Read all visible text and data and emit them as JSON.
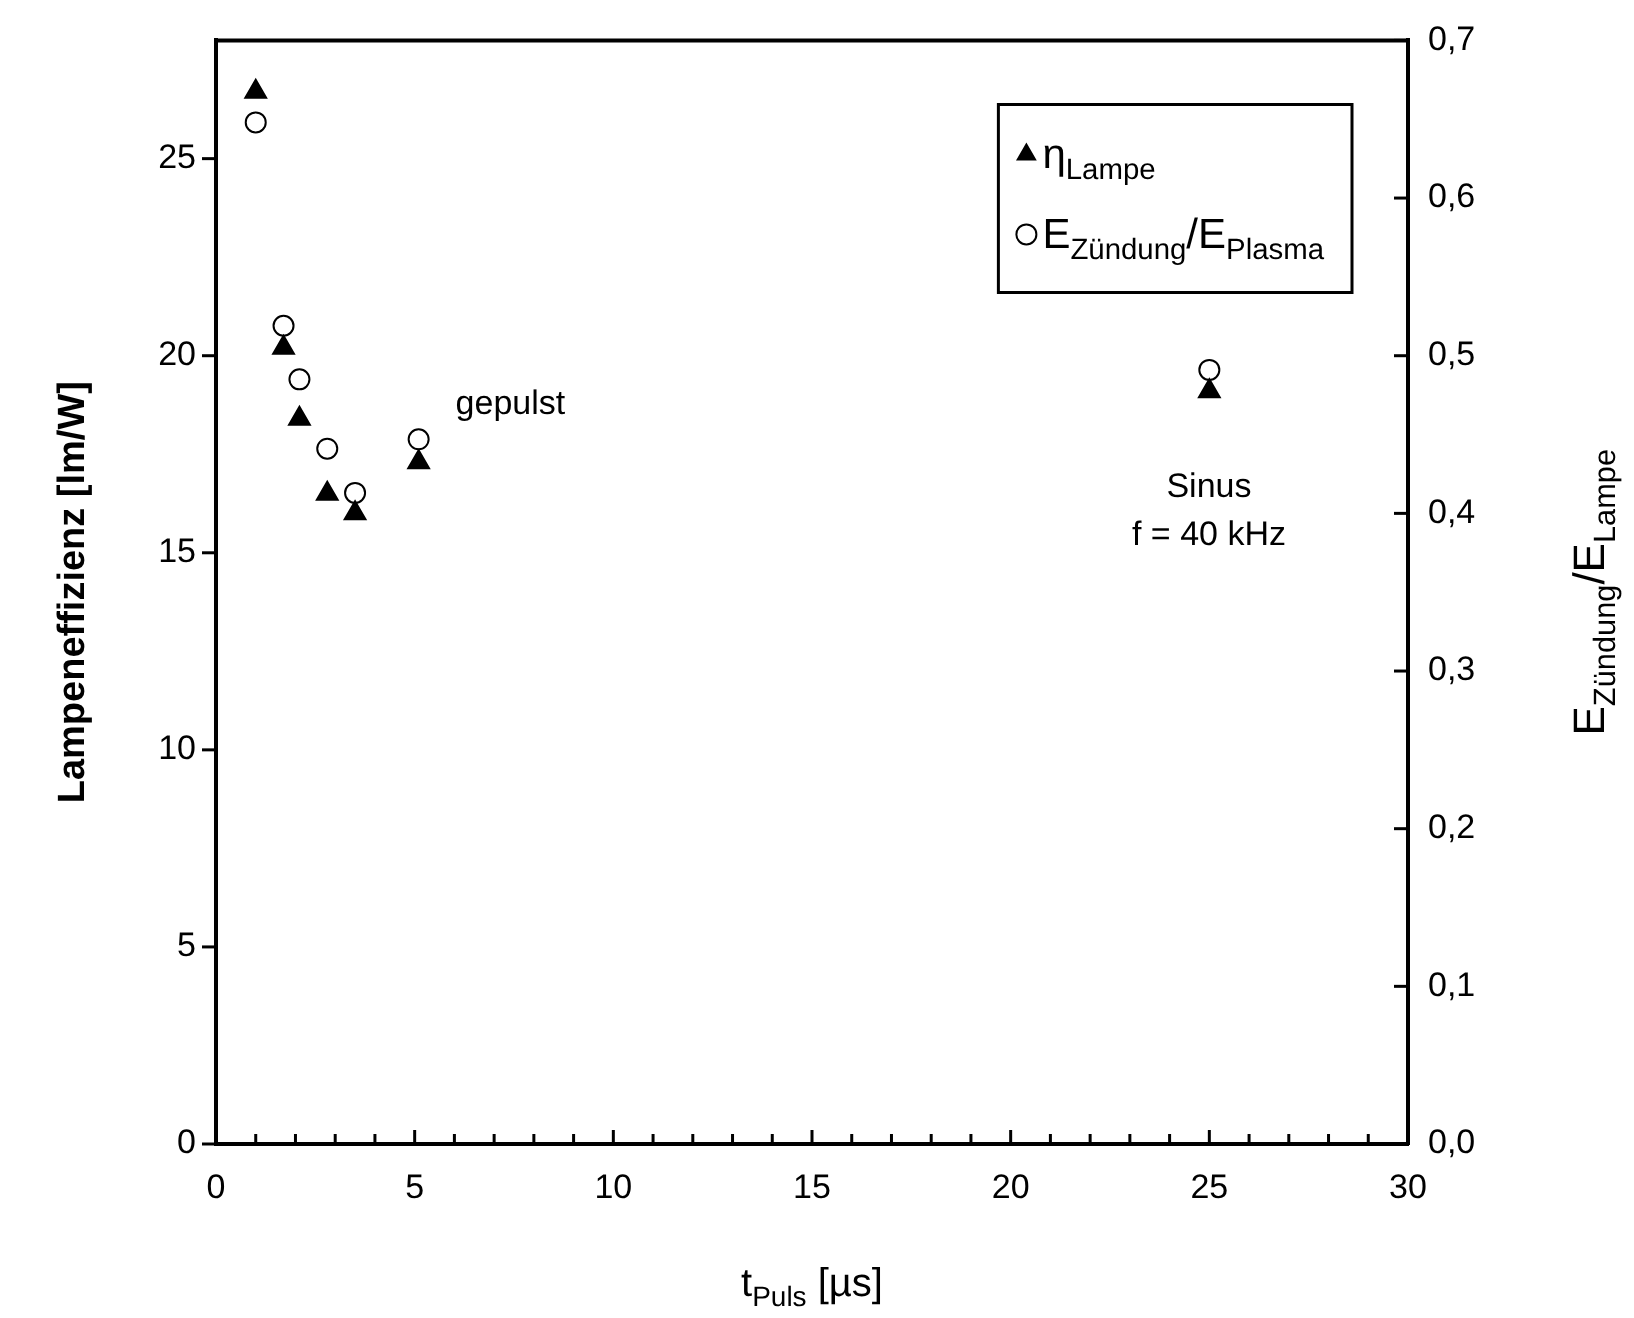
{
  "chart_data": {
    "type": "scatter",
    "xlabel": "t$_{Puls}$ [µs]",
    "ylabel": "Lampeneffizienz [lm/W]",
    "y2label": "E$_{Zündung}$/E$_{Lampe}$",
    "xlim": [
      0,
      30
    ],
    "xticks": [
      0,
      {
        "value": 1,
        "label": null
      },
      {
        "value": 2,
        "label": null
      },
      {
        "value": 3,
        "label": null
      },
      {
        "value": 4,
        "label": null
      },
      5,
      {
        "value": 6,
        "label": null
      },
      {
        "value": 7,
        "label": null
      },
      {
        "value": 8,
        "label": null
      },
      {
        "value": 9,
        "label": null
      },
      10,
      {
        "value": 11,
        "label": null
      },
      {
        "value": 12,
        "label": null
      },
      {
        "value": 13,
        "label": null
      },
      {
        "value": 14,
        "label": null
      },
      15,
      {
        "value": 16,
        "label": null
      },
      {
        "value": 17,
        "label": null
      },
      {
        "value": 18,
        "label": null
      },
      {
        "value": 19,
        "label": null
      },
      20,
      {
        "value": 21,
        "label": null
      },
      {
        "value": 22,
        "label": null
      },
      {
        "value": 23,
        "label": null
      },
      {
        "value": 24,
        "label": null
      },
      25,
      {
        "value": 26,
        "label": null
      },
      {
        "value": 27,
        "label": null
      },
      {
        "value": 28,
        "label": null
      },
      {
        "value": 29,
        "label": null
      },
      30
    ],
    "ylim": [
      0,
      28
    ],
    "yticks": [
      0,
      5,
      10,
      15,
      20,
      25
    ],
    "y2lim": [
      0,
      0.7
    ],
    "y2ticks": [
      {
        "value": 0,
        "label": "0,0"
      },
      {
        "value": 0.1,
        "label": "0,1"
      },
      {
        "value": 0.2,
        "label": "0,2"
      },
      {
        "value": 0.3,
        "label": "0,3"
      },
      {
        "value": 0.4,
        "label": "0,4"
      },
      {
        "value": 0.5,
        "label": "0,5"
      },
      {
        "value": 0.6,
        "label": "0,6"
      },
      {
        "value": 0.7,
        "label": "0,7"
      }
    ],
    "legend": "top right",
    "series": [
      {
        "name": "η$_{Lampe}$",
        "color": "#000000",
        "marker": "triangle",
        "x": [
          1.0,
          1.7,
          2.1,
          2.8,
          3.5,
          5.1,
          25
        ],
        "values": [
          26.7,
          20.2,
          18.4,
          16.5,
          16.0,
          17.3,
          19.1
        ]
      },
      {
        "name": "E$_{Zündung}$/E$_{Plasma}$",
        "color": "#000000",
        "marker": "circle",
        "axis": "y2",
        "x": [
          1.0,
          1.7,
          2.1,
          2.8,
          3.5,
          5.1,
          25
        ],
        "values": [
          0.648,
          0.519,
          0.485,
          0.441,
          0.413,
          0.447,
          0.491
        ]
      }
    ],
    "annotations": [
      "gepulst",
      "Sinus\nf = 40 kHz"
    ]
  }
}
